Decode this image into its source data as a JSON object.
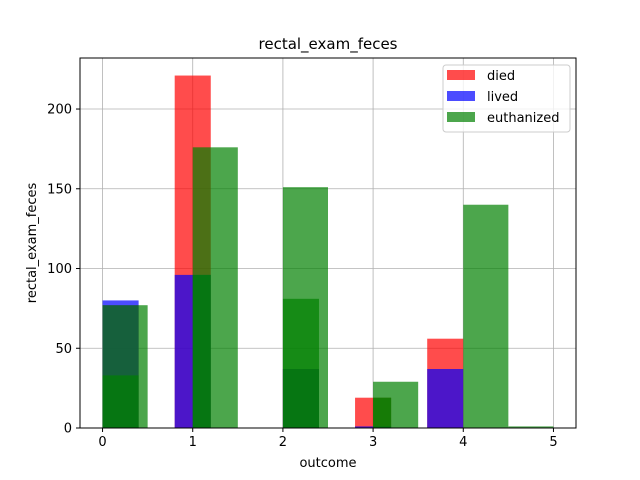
{
  "chart_data": {
    "type": "bar",
    "title": "rectal_exam_feces",
    "xlabel": "outcome",
    "ylabel": "rectal_exam_feces",
    "xlim": [
      -0.25,
      5.25
    ],
    "ylim": [
      0,
      232
    ],
    "xticks": [
      "0",
      "1",
      "2",
      "3",
      "4",
      "5"
    ],
    "yticks": [
      "0",
      "50",
      "100",
      "150",
      "200"
    ],
    "grid": true,
    "legend_position": "top-right",
    "bar_opacity": 0.7,
    "series": [
      {
        "name": "died",
        "color": "#ff0000",
        "bars": [
          {
            "x0": 0.0,
            "x1": 0.4,
            "value": 77
          },
          {
            "x0": 0.8,
            "x1": 1.2,
            "value": 221
          },
          {
            "x0": 2.0,
            "x1": 2.4,
            "value": 37
          },
          {
            "x0": 2.8,
            "x1": 3.2,
            "value": 19
          },
          {
            "x0": 3.6,
            "x1": 4.0,
            "value": 56
          }
        ]
      },
      {
        "name": "lived",
        "color": "#0000ff",
        "bars": [
          {
            "x0": 0.0,
            "x1": 0.4,
            "value": 80
          },
          {
            "x0": 0.8,
            "x1": 1.2,
            "value": 96
          },
          {
            "x0": 2.0,
            "x1": 2.4,
            "value": 37
          },
          {
            "x0": 2.8,
            "x1": 3.2,
            "value": 1
          },
          {
            "x0": 3.6,
            "x1": 4.0,
            "value": 37
          }
        ]
      },
      {
        "name": "euthanized",
        "color": "#008000",
        "bars": [
          {
            "x0": 0.0,
            "x1": 0.5,
            "value": 77
          },
          {
            "x0": 0.0,
            "x1": 0.4,
            "value": 33
          },
          {
            "x0": 1.0,
            "x1": 1.5,
            "value": 176
          },
          {
            "x0": 1.0,
            "x1": 1.2,
            "value": 96
          },
          {
            "x0": 2.0,
            "x1": 2.5,
            "value": 151
          },
          {
            "x0": 2.0,
            "x1": 2.4,
            "value": 81
          },
          {
            "x0": 3.0,
            "x1": 3.5,
            "value": 29
          },
          {
            "x0": 3.0,
            "x1": 3.2,
            "value": 19
          },
          {
            "x0": 4.0,
            "x1": 4.5,
            "value": 140
          },
          {
            "x0": 4.5,
            "x1": 5.0,
            "value": 1
          }
        ]
      }
    ]
  }
}
